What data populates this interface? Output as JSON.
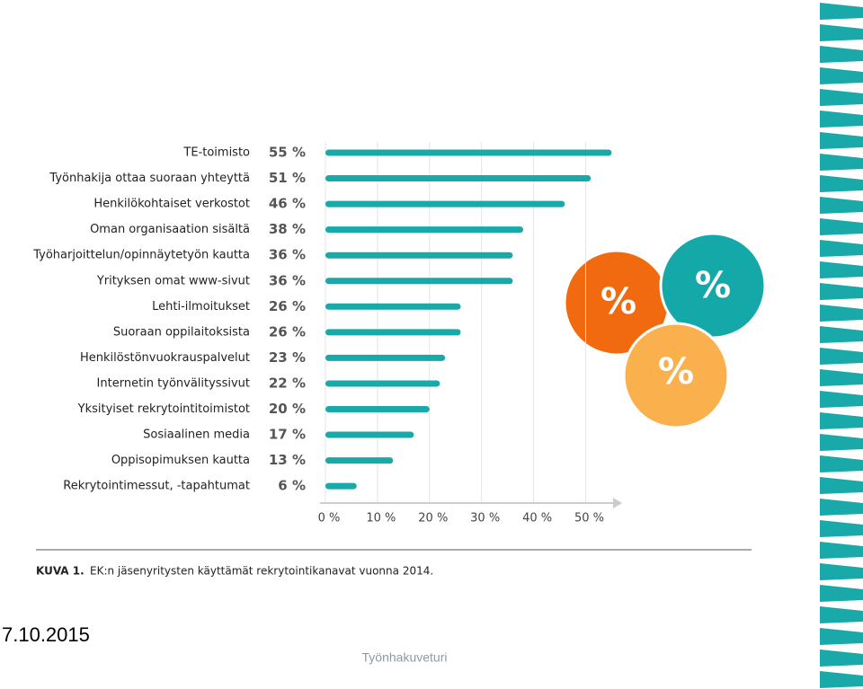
{
  "chart_data": {
    "type": "bar",
    "orientation": "horizontal",
    "color": "#19a9a8",
    "categories": [
      "TE-toimisto",
      "Työnhakija ottaa suoraan yhteyttä",
      "Henkilökohtaiset verkostot",
      "Oman organisaation sisältä",
      "Työharjoittelun/opinnäytetyön kautta",
      "Yrityksen omat www-sivut",
      "Lehti-ilmoitukset",
      "Suoraan oppilaitoksista",
      "Henkilöstönvuokrauspalvelut",
      "Internetin työnvälityssivut",
      "Yksityiset rekrytointitoimistot",
      "Sosiaalinen media",
      "Oppisopimuksen kautta",
      "Rekrytointimessut, -tapahtumat"
    ],
    "values": [
      55,
      51,
      46,
      38,
      36,
      36,
      26,
      26,
      23,
      22,
      20,
      17,
      13,
      6
    ],
    "value_labels": [
      "55 %",
      "51 %",
      "46 %",
      "38 %",
      "36 %",
      "36 %",
      "26 %",
      "26 %",
      "23 %",
      "22 %",
      "20 %",
      "17 %",
      "13 %",
      "6 %"
    ],
    "xlim": [
      0,
      57
    ],
    "xticks": [
      {
        "value": 0,
        "label": "0 %"
      },
      {
        "value": 10,
        "label": "10 %"
      },
      {
        "value": 20,
        "label": "20 %"
      },
      {
        "value": 30,
        "label": "30 %"
      },
      {
        "value": 40,
        "label": "40 %"
      },
      {
        "value": 50,
        "label": "50 %"
      }
    ],
    "grid": true,
    "caption_label": "KUVA 1.",
    "caption": "EK:n jäsenyritysten käyttämät rekrytointikanavat vuonna 2014."
  },
  "badges": [
    "%",
    "%",
    "%"
  ],
  "date": "7.10.2015",
  "footer": "Työnhakuveturi"
}
